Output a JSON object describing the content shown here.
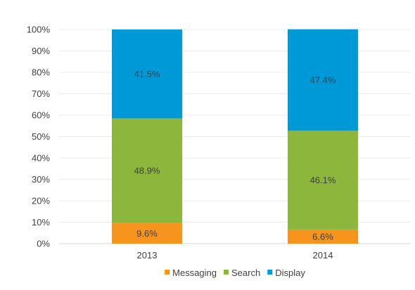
{
  "chart_data": {
    "type": "bar",
    "stacked": true,
    "categories": [
      "2013",
      "2014"
    ],
    "series": [
      {
        "name": "Messaging",
        "values": [
          9.6,
          6.6
        ],
        "labels": [
          "9.6%",
          "6.6%"
        ],
        "color": "#F7941D"
      },
      {
        "name": "Search",
        "values": [
          48.9,
          46.1
        ],
        "labels": [
          "48.9%",
          "46.1%"
        ],
        "color": "#8DB63C"
      },
      {
        "name": "Display",
        "values": [
          41.5,
          47.4
        ],
        "labels": [
          "41.5%",
          "47.4%"
        ],
        "color": "#0099D8"
      }
    ],
    "ylim": [
      0,
      100
    ],
    "yticks": [
      "0%",
      "10%",
      "20%",
      "30%",
      "40%",
      "50%",
      "60%",
      "70%",
      "80%",
      "90%",
      "100%"
    ],
    "grid": true,
    "legend_position": "bottom"
  }
}
